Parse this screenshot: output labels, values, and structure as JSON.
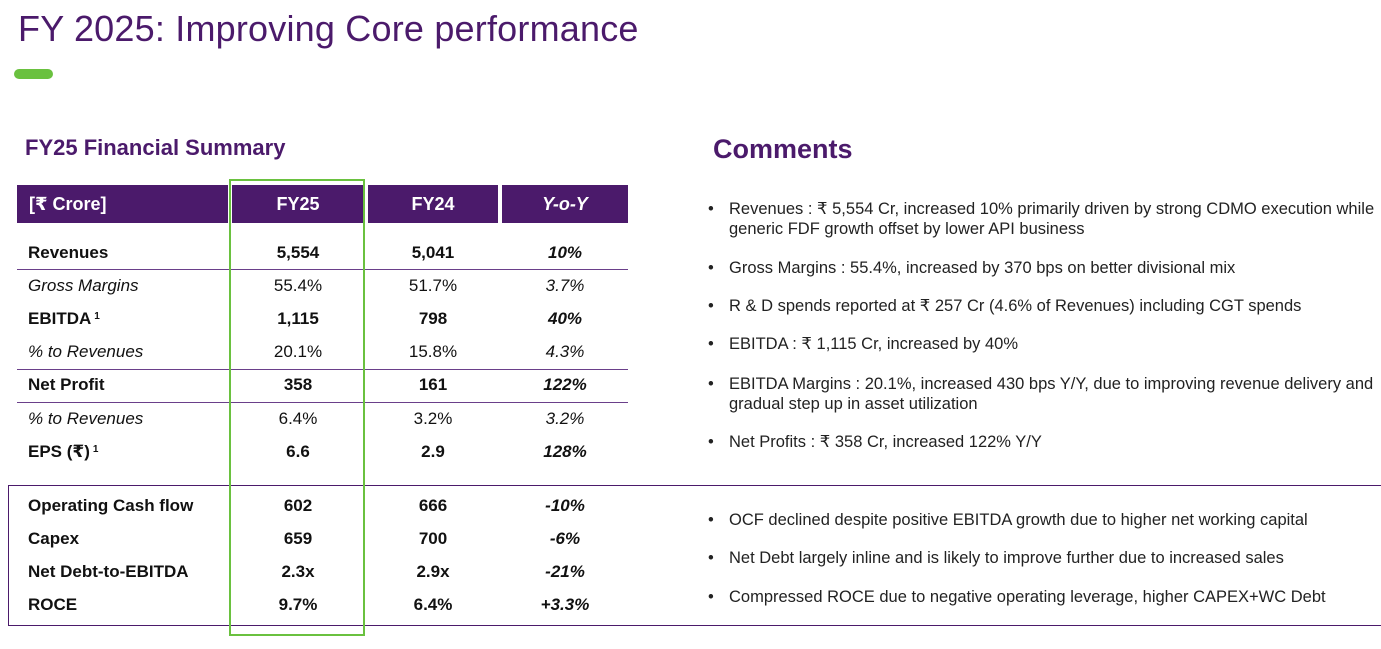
{
  "page": {
    "title": "FY 2025: Improving Core performance",
    "accent_color": "#6ac13f",
    "brand_color": "#4b1a6b"
  },
  "summary": {
    "title": "FY25  Financial Summary",
    "headers": [
      "[₹ Crore]",
      "FY25",
      "FY24",
      "Y-o-Y"
    ],
    "rows": [
      {
        "label": "Revenues",
        "sup": "",
        "fy25": "5,554",
        "fy24": "5,041",
        "yoy": "10%"
      },
      {
        "label": "Gross Margins",
        "sup": "",
        "fy25": "55.4%",
        "fy24": "51.7%",
        "yoy": "3.7%"
      },
      {
        "label": "EBITDA",
        "sup": "1",
        "fy25": "1,115",
        "fy24": "798",
        "yoy": "40%"
      },
      {
        "label": "% to Revenues",
        "sup": "",
        "fy25": "20.1%",
        "fy24": "15.8%",
        "yoy": "4.3%"
      },
      {
        "label": "Net Profit",
        "sup": "",
        "fy25": "358",
        "fy24": "161",
        "yoy": "122%"
      },
      {
        "label": "% to Revenues",
        "sup": "",
        "fy25": "6.4%",
        "fy24": "3.2%",
        "yoy": "3.2%"
      },
      {
        "label": "EPS (₹)",
        "sup": "1",
        "fy25": "6.6",
        "fy24": "2.9",
        "yoy": "128%"
      }
    ],
    "lower_rows": [
      {
        "label": "Operating Cash flow",
        "fy25": "602",
        "fy24": "666",
        "yoy": "-10%"
      },
      {
        "label": "Capex",
        "fy25": "659",
        "fy24": "700",
        "yoy": "-6%"
      },
      {
        "label": "Net Debt-to-EBITDA",
        "fy25": "2.3x",
        "fy24": "2.9x",
        "yoy": "-21%"
      },
      {
        "label": "ROCE",
        "fy25": "9.7%",
        "fy24": "6.4%",
        "yoy": "+3.3%"
      }
    ]
  },
  "comments": {
    "title": "Comments",
    "bullet": "•",
    "items": [
      "Revenues : ₹ 5,554 Cr, increased 10% primarily driven by strong CDMO execution while generic FDF growth offset by lower API business",
      "Gross Margins :  55.4%, increased by 370 bps on better divisional mix",
      "R & D spends reported at ₹ 257 Cr (4.6% of Revenues) including CGT spends",
      "EBITDA  : ₹ 1,115 Cr, increased by 40%",
      "EBITDA Margins : 20.1%, increased 430 bps Y/Y, due to improving revenue delivery and gradual step up in asset utilization",
      "Net Profits : ₹ 358 Cr, increased 122% Y/Y"
    ],
    "lower_items": [
      "OCF declined despite positive EBITDA growth due to higher net working capital",
      "Net Debt largely inline and is likely to improve further due to increased sales",
      "Compressed ROCE due to negative operating leverage, higher CAPEX+WC Debt"
    ]
  }
}
